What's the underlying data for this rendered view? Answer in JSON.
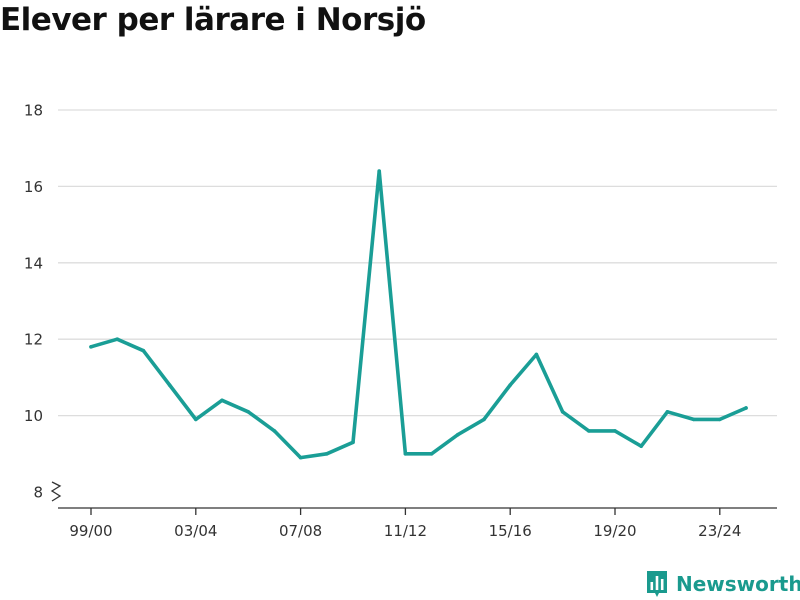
{
  "title": "Elever per lärare i Norsjö",
  "brand": {
    "name": "Newsworthy",
    "icon": "bar-chart-icon"
  },
  "colors": {
    "line": "#1a9e96",
    "grid": "#dddddd",
    "axis": "#333333",
    "brand": "#1a9a8e"
  },
  "chart_data": {
    "type": "line",
    "x": [
      "99/00",
      "00/01",
      "01/02",
      "02/03",
      "03/04",
      "04/05",
      "05/06",
      "06/07",
      "07/08",
      "08/09",
      "09/10",
      "10/11",
      "11/12",
      "12/13",
      "13/14",
      "14/15",
      "15/16",
      "16/17",
      "17/18",
      "18/19",
      "19/20",
      "20/21",
      "21/22",
      "22/23",
      "23/24",
      "24/25"
    ],
    "series": [
      {
        "values": [
          11.8,
          12.0,
          11.7,
          10.8,
          9.9,
          10.4,
          10.1,
          9.6,
          8.9,
          9.0,
          9.3,
          16.4,
          9.0,
          9.0,
          9.5,
          9.9,
          10.8,
          11.6,
          10.1,
          9.6,
          9.6,
          9.2,
          10.1,
          9.9,
          9.9,
          10.2
        ]
      }
    ],
    "x_tick_labels": [
      "99/00",
      "03/04",
      "07/08",
      "11/12",
      "15/16",
      "19/20",
      "23/24"
    ],
    "y_ticks": [
      8,
      10,
      12,
      14,
      16,
      18
    ],
    "ylim": [
      8,
      18
    ],
    "axis_break": true,
    "grid": true
  }
}
